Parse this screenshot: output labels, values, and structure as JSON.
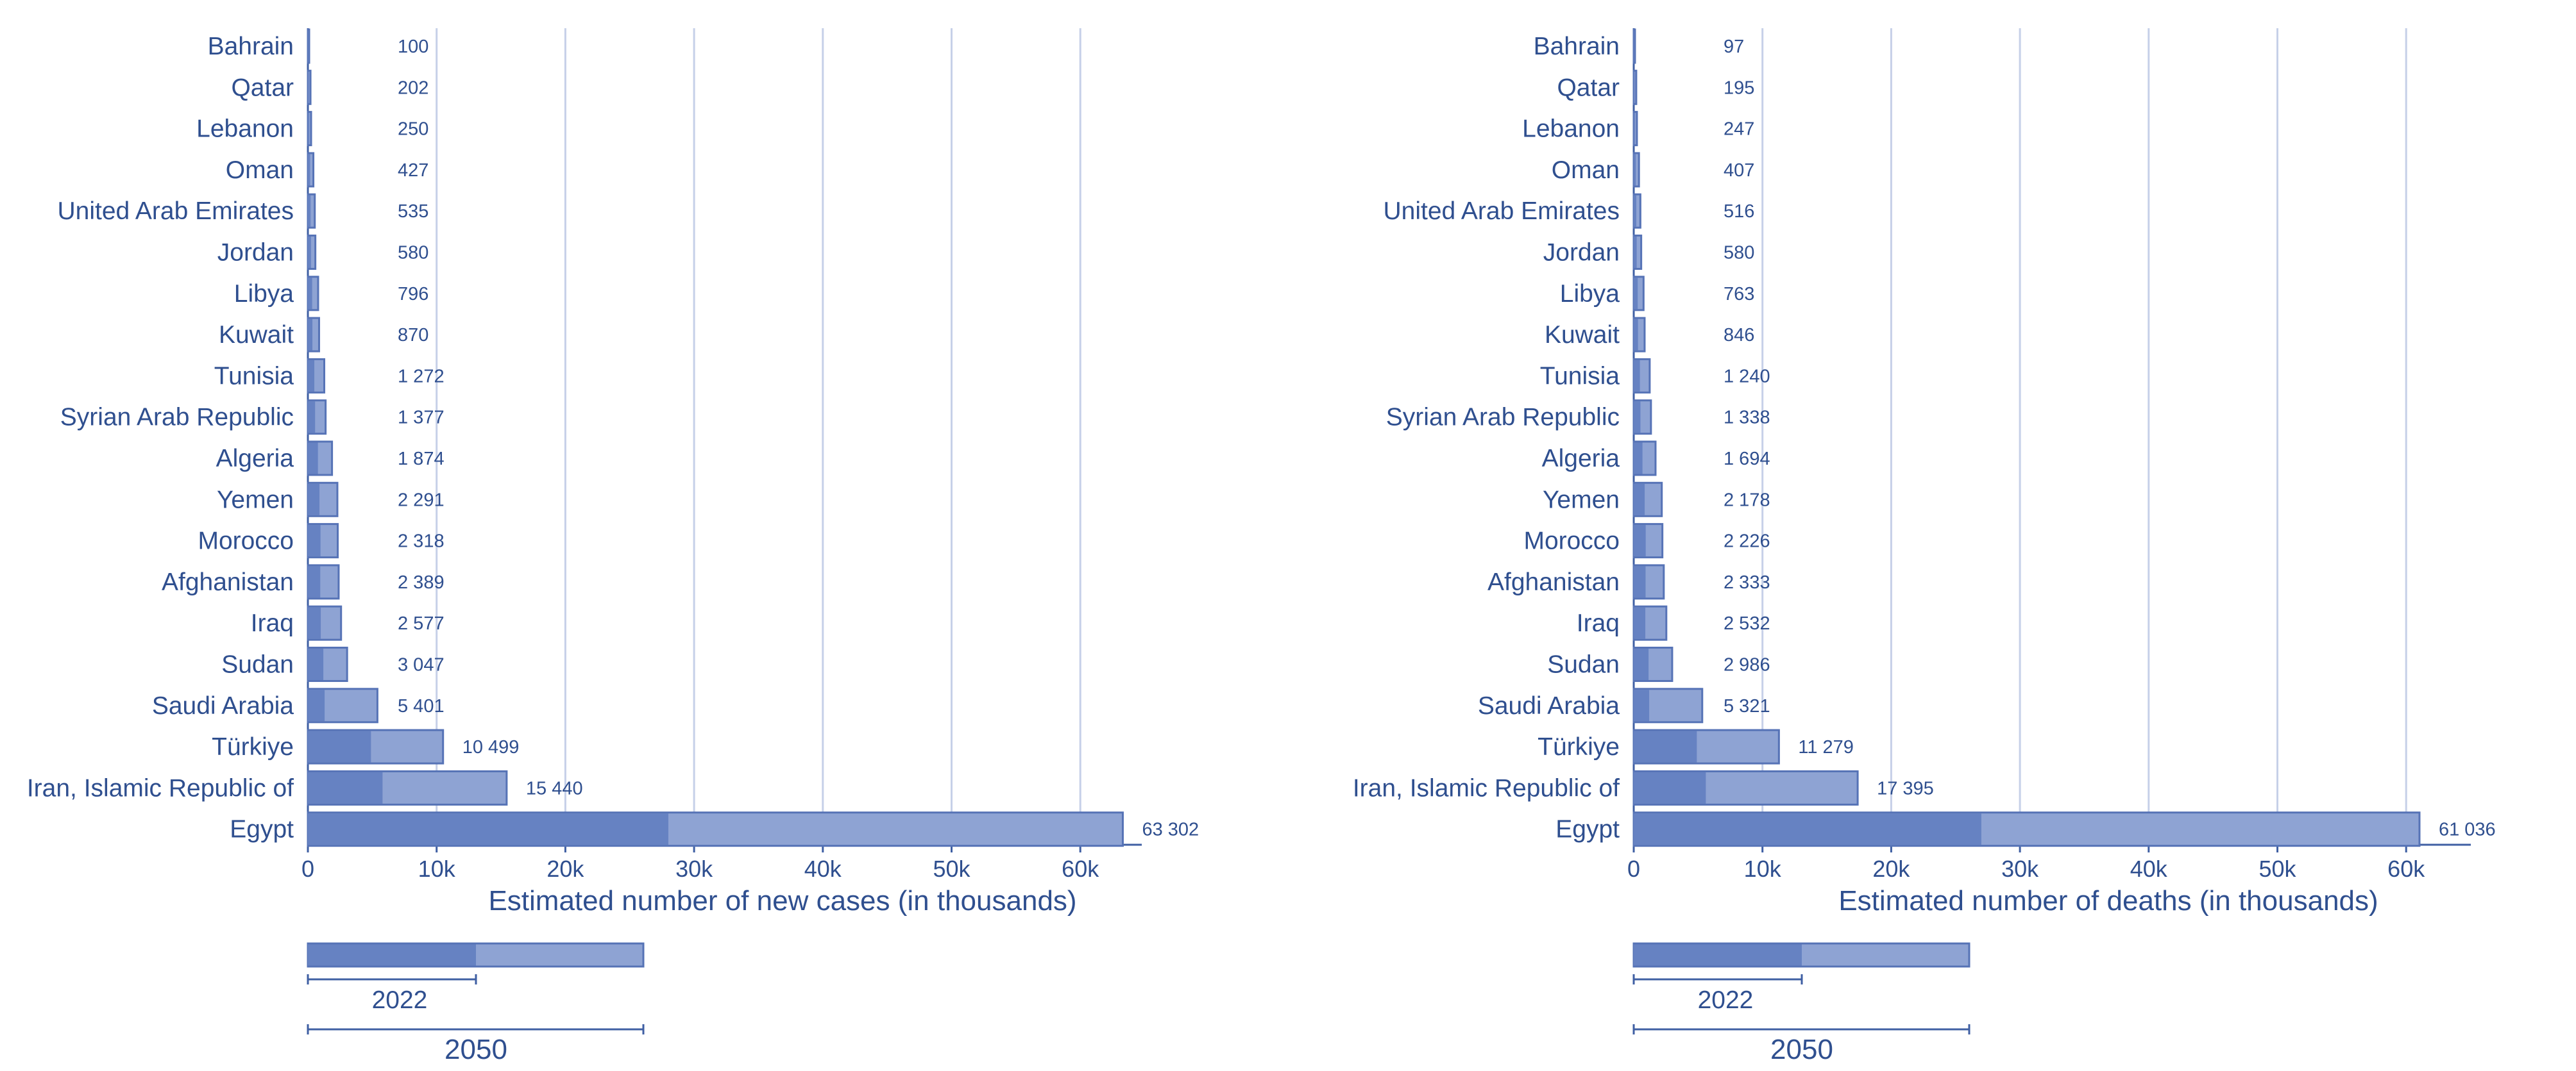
{
  "colors": {
    "bar_2022": "#6682c2",
    "bar_2050": "#8ea3d3",
    "bar_edge": "#5673b6",
    "grid": "#c6d0e8",
    "axis": "#3f5fa3",
    "text": "#2f4f8f"
  },
  "legend": {
    "label_2022": "2022",
    "label_2050": "2050"
  },
  "chart_data": [
    {
      "type": "bar",
      "orientation": "horizontal",
      "stacked_overlay": true,
      "xlabel": "Estimated number of new cases (in thousands)",
      "xlim": [
        0,
        65000
      ],
      "xticks": [
        0,
        10000,
        20000,
        30000,
        40000,
        50000,
        60000
      ],
      "xtick_labels": [
        "0",
        "10k",
        "20k",
        "30k",
        "40k",
        "50k",
        "60k"
      ],
      "categories": [
        "Bahrain",
        "Qatar",
        "Lebanon",
        "Oman",
        "United Arab Emirates",
        "Jordan",
        "Libya",
        "Kuwait",
        "Tunisia",
        "Syrian Arab Republic",
        "Algeria",
        "Yemen",
        "Morocco",
        "Afghanistan",
        "Iraq",
        "Sudan",
        "Saudi Arabia",
        "Türkiye",
        "Iran, Islamic Republic of",
        "Egypt"
      ],
      "series": [
        {
          "name": "2022",
          "values": [
            40,
            80,
            100,
            170,
            210,
            240,
            330,
            350,
            500,
            560,
            780,
            900,
            980,
            960,
            1000,
            1200,
            1300,
            4900,
            5800,
            28000
          ]
        },
        {
          "name": "2050",
          "values": [
            100,
            202,
            250,
            427,
            535,
            580,
            796,
            870,
            1272,
            1377,
            1874,
            2291,
            2318,
            2389,
            2577,
            3047,
            5401,
            10499,
            15440,
            63302
          ]
        }
      ],
      "value_labels": [
        "100",
        "202",
        "250",
        "427",
        "535",
        "580",
        "796",
        "870",
        "1 272",
        "1 377",
        "1 874",
        "2 291",
        "2 318",
        "2 389",
        "2 577",
        "3 047",
        "5 401",
        "10 499",
        "15 440",
        "63 302"
      ]
    },
    {
      "type": "bar",
      "orientation": "horizontal",
      "stacked_overlay": true,
      "xlabel": "Estimated number of deaths (in thousands)",
      "xlim": [
        0,
        65000
      ],
      "xticks": [
        0,
        10000,
        20000,
        30000,
        40000,
        50000,
        60000
      ],
      "xtick_labels": [
        "0",
        "10k",
        "20k",
        "30k",
        "40k",
        "50k",
        "60k"
      ],
      "categories": [
        "Bahrain",
        "Qatar",
        "Lebanon",
        "Oman",
        "United Arab Emirates",
        "Jordan",
        "Libya",
        "Kuwait",
        "Tunisia",
        "Syrian Arab Republic",
        "Algeria",
        "Yemen",
        "Morocco",
        "Afghanistan",
        "Iraq",
        "Sudan",
        "Saudi Arabia",
        "Türkiye",
        "Iran, Islamic Republic of",
        "Egypt"
      ],
      "series": [
        {
          "name": "2022",
          "values": [
            40,
            80,
            100,
            160,
            200,
            230,
            310,
            330,
            480,
            520,
            680,
            850,
            930,
            920,
            900,
            1150,
            1200,
            4900,
            5600,
            27000
          ]
        },
        {
          "name": "2050",
          "values": [
            97,
            195,
            247,
            407,
            516,
            580,
            763,
            846,
            1240,
            1338,
            1694,
            2178,
            2226,
            2333,
            2532,
            2986,
            5321,
            11279,
            17395,
            61036
          ]
        }
      ],
      "value_labels": [
        "97",
        "195",
        "247",
        "407",
        "516",
        "580",
        "763",
        "846",
        "1 240",
        "1 338",
        "1 694",
        "2 178",
        "2 226",
        "2 333",
        "2 532",
        "2 986",
        "5 321",
        "11 279",
        "17 395",
        "61 036"
      ]
    }
  ]
}
